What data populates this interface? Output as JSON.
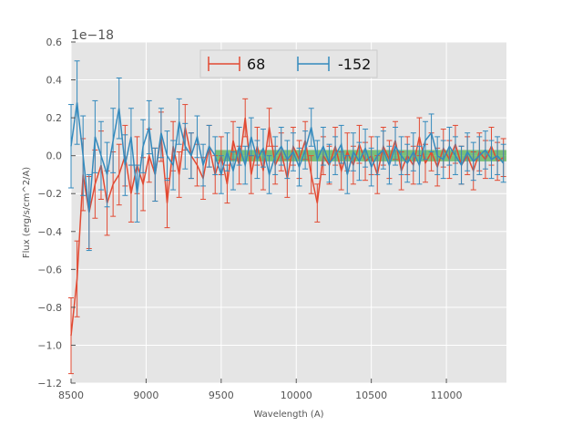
{
  "chart_data": {
    "type": "line",
    "title": "",
    "xlabel": "Wavelength (A)",
    "ylabel": "Flux (erg/s/cm^2/A)",
    "y_offset_label": "1e−18",
    "xlim": [
      8500,
      11400
    ],
    "ylim": [
      -1.2,
      0.6
    ],
    "x_ticks": [
      8500,
      9000,
      9500,
      10000,
      10500,
      11000
    ],
    "x_tick_labels": [
      "8500",
      "9000",
      "9500",
      "10000",
      "10500",
      "11000"
    ],
    "y_ticks": [
      -1.2,
      -1.0,
      -0.8,
      -0.6,
      -0.4,
      -0.2,
      0.0,
      0.2,
      0.4,
      0.6
    ],
    "y_tick_labels": [
      "−1.2",
      "−1.0",
      "−0.8",
      "−0.6",
      "−0.4",
      "−0.2",
      "0.0",
      "0.2",
      "0.4",
      "0.6"
    ],
    "grid": true,
    "background": "#e5e5e5",
    "legend_position": "top-center",
    "band": {
      "x": [
        9460,
        11400
      ],
      "y": [
        -0.03,
        0.03
      ],
      "color": "#4daf4a"
    },
    "series": [
      {
        "name": "68",
        "color": "#e24a33",
        "x": [
          8500,
          8540,
          8580,
          8620,
          8660,
          8700,
          8740,
          8780,
          8820,
          8860,
          8900,
          8940,
          8980,
          9020,
          9060,
          9100,
          9140,
          9180,
          9220,
          9260,
          9300,
          9340,
          9380,
          9420,
          9460,
          9500,
          9540,
          9580,
          9620,
          9660,
          9700,
          9740,
          9780,
          9820,
          9860,
          9900,
          9940,
          9980,
          10020,
          10060,
          10100,
          10140,
          10180,
          10220,
          10260,
          10300,
          10340,
          10380,
          10420,
          10460,
          10500,
          10540,
          10580,
          10620,
          10660,
          10700,
          10740,
          10780,
          10820,
          10860,
          10900,
          10940,
          10980,
          11020,
          11060,
          11100,
          11140,
          11180,
          11220,
          11260,
          11300,
          11340,
          11380
        ],
        "y": [
          -0.95,
          -0.65,
          -0.1,
          -0.3,
          -0.15,
          -0.05,
          -0.25,
          -0.15,
          -0.1,
          0.0,
          -0.2,
          -0.05,
          -0.15,
          0.0,
          -0.1,
          0.1,
          -0.25,
          0.05,
          -0.1,
          0.15,
          0.0,
          -0.05,
          -0.12,
          0.05,
          -0.1,
          0.0,
          -0.15,
          0.08,
          -0.05,
          0.2,
          -0.1,
          0.05,
          -0.08,
          0.15,
          -0.05,
          0.02,
          -0.12,
          0.05,
          -0.02,
          0.08,
          -0.1,
          -0.25,
          0.0,
          -0.05,
          0.05,
          -0.08,
          0.02,
          -0.05,
          0.06,
          -0.03,
          0.0,
          -0.1,
          0.05,
          -0.02,
          0.08,
          -0.08,
          0.0,
          -0.05,
          0.1,
          -0.04,
          0.02,
          -0.06,
          0.04,
          -0.02,
          0.06,
          -0.05,
          0.0,
          -0.08,
          0.02,
          -0.02,
          0.05,
          -0.03,
          -0.01
        ],
        "err": [
          0.2,
          0.2,
          0.19,
          0.19,
          0.18,
          0.18,
          0.17,
          0.17,
          0.16,
          0.16,
          0.15,
          0.15,
          0.14,
          0.14,
          0.14,
          0.13,
          0.13,
          0.13,
          0.12,
          0.12,
          0.12,
          0.11,
          0.11,
          0.11,
          0.1,
          0.1,
          0.1,
          0.1,
          0.1,
          0.1,
          0.1,
          0.1,
          0.1,
          0.1,
          0.1,
          0.1,
          0.1,
          0.1,
          0.1,
          0.1,
          0.1,
          0.1,
          0.1,
          0.1,
          0.1,
          0.1,
          0.1,
          0.1,
          0.1,
          0.1,
          0.1,
          0.1,
          0.1,
          0.1,
          0.1,
          0.1,
          0.1,
          0.1,
          0.1,
          0.1,
          0.1,
          0.1,
          0.1,
          0.1,
          0.1,
          0.1,
          0.1,
          0.1,
          0.1,
          0.1,
          0.1,
          0.1,
          0.1
        ]
      },
      {
        "name": "-152",
        "color": "#348abd",
        "x": [
          8500,
          8540,
          8580,
          8620,
          8660,
          8700,
          8740,
          8780,
          8820,
          8860,
          8900,
          8940,
          8980,
          9020,
          9060,
          9100,
          9140,
          9180,
          9220,
          9260,
          9300,
          9340,
          9380,
          9420,
          9460,
          9500,
          9540,
          9580,
          9620,
          9660,
          9700,
          9740,
          9780,
          9820,
          9860,
          9900,
          9940,
          9980,
          10020,
          10060,
          10100,
          10140,
          10180,
          10220,
          10260,
          10300,
          10340,
          10380,
          10420,
          10460,
          10500,
          10540,
          10580,
          10620,
          10660,
          10700,
          10740,
          10780,
          10820,
          10860,
          10900,
          10940,
          10980,
          11020,
          11060,
          11100,
          11140,
          11180,
          11220,
          11260,
          11300,
          11340,
          11380
        ],
        "y": [
          0.05,
          0.28,
          0.0,
          -0.3,
          0.1,
          0.0,
          -0.1,
          0.08,
          0.25,
          -0.05,
          0.1,
          -0.2,
          0.05,
          0.15,
          -0.1,
          0.12,
          0.0,
          -0.05,
          0.18,
          0.05,
          0.0,
          0.1,
          -0.05,
          0.05,
          0.0,
          -0.1,
          0.02,
          -0.08,
          0.05,
          -0.05,
          0.1,
          -0.02,
          0.04,
          -0.1,
          0.0,
          0.05,
          -0.02,
          0.02,
          -0.06,
          0.03,
          0.15,
          -0.02,
          0.05,
          -0.04,
          0.0,
          0.06,
          -0.1,
          0.02,
          -0.03,
          0.04,
          -0.06,
          0.0,
          0.03,
          -0.05,
          0.05,
          0.0,
          -0.04,
          0.02,
          -0.05,
          0.08,
          0.12,
          0.0,
          -0.02,
          0.05,
          0.0,
          -0.05,
          0.02,
          -0.03,
          0.0,
          0.03,
          -0.02,
          0.0,
          -0.04
        ],
        "err": [
          0.22,
          0.22,
          0.21,
          0.2,
          0.19,
          0.18,
          0.17,
          0.17,
          0.16,
          0.16,
          0.15,
          0.15,
          0.14,
          0.14,
          0.14,
          0.13,
          0.13,
          0.13,
          0.12,
          0.12,
          0.12,
          0.11,
          0.11,
          0.11,
          0.1,
          0.1,
          0.1,
          0.1,
          0.1,
          0.1,
          0.1,
          0.1,
          0.1,
          0.1,
          0.1,
          0.1,
          0.1,
          0.1,
          0.1,
          0.1,
          0.1,
          0.1,
          0.1,
          0.1,
          0.1,
          0.1,
          0.1,
          0.1,
          0.1,
          0.1,
          0.1,
          0.1,
          0.1,
          0.1,
          0.1,
          0.1,
          0.1,
          0.1,
          0.1,
          0.1,
          0.1,
          0.1,
          0.1,
          0.1,
          0.1,
          0.1,
          0.1,
          0.1,
          0.1,
          0.1,
          0.1,
          0.1,
          0.1
        ]
      }
    ]
  }
}
